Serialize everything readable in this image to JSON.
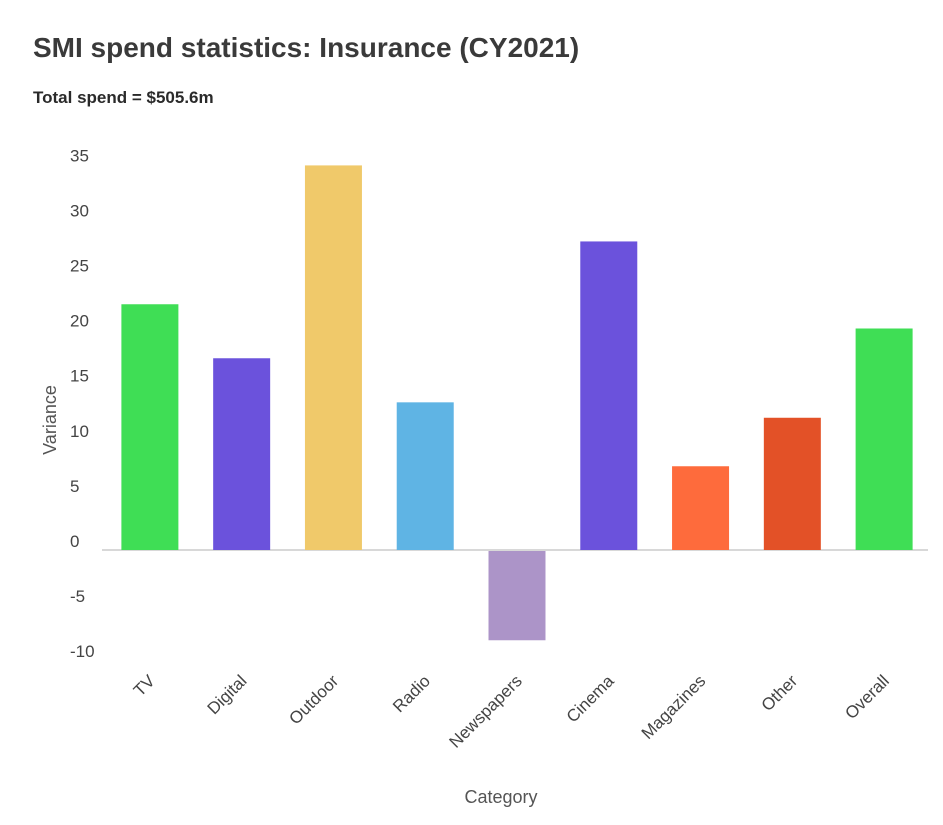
{
  "header": {
    "title": "SMI spend statistics: Insurance (CY2021)",
    "subtitle": "Total spend = $505.6m"
  },
  "chart_data": {
    "type": "bar",
    "title": "SMI spend statistics: Insurance (CY2021)",
    "subtitle": "Total spend = $505.6m",
    "xlabel": "Category",
    "ylabel": "Variance",
    "categories": [
      "TV",
      "Digital",
      "Outdoor",
      "Radio",
      "Newspapers",
      "Cinema",
      "Magazines",
      "Other",
      "Overall"
    ],
    "values": [
      22.3,
      17.4,
      34.9,
      13.4,
      -8.1,
      28.0,
      7.6,
      12.0,
      20.1
    ],
    "colors": [
      "#3fde55",
      "#6b52dc",
      "#f0c96a",
      "#5fb4e4",
      "#ac94c8",
      "#6b52dc",
      "#fe6b3c",
      "#e35127",
      "#3fde55"
    ],
    "yticks": [
      35,
      30,
      25,
      20,
      15,
      10,
      5,
      0,
      -5,
      -10
    ],
    "ylim": [
      -10,
      35
    ],
    "grid": false,
    "legend": "none"
  }
}
